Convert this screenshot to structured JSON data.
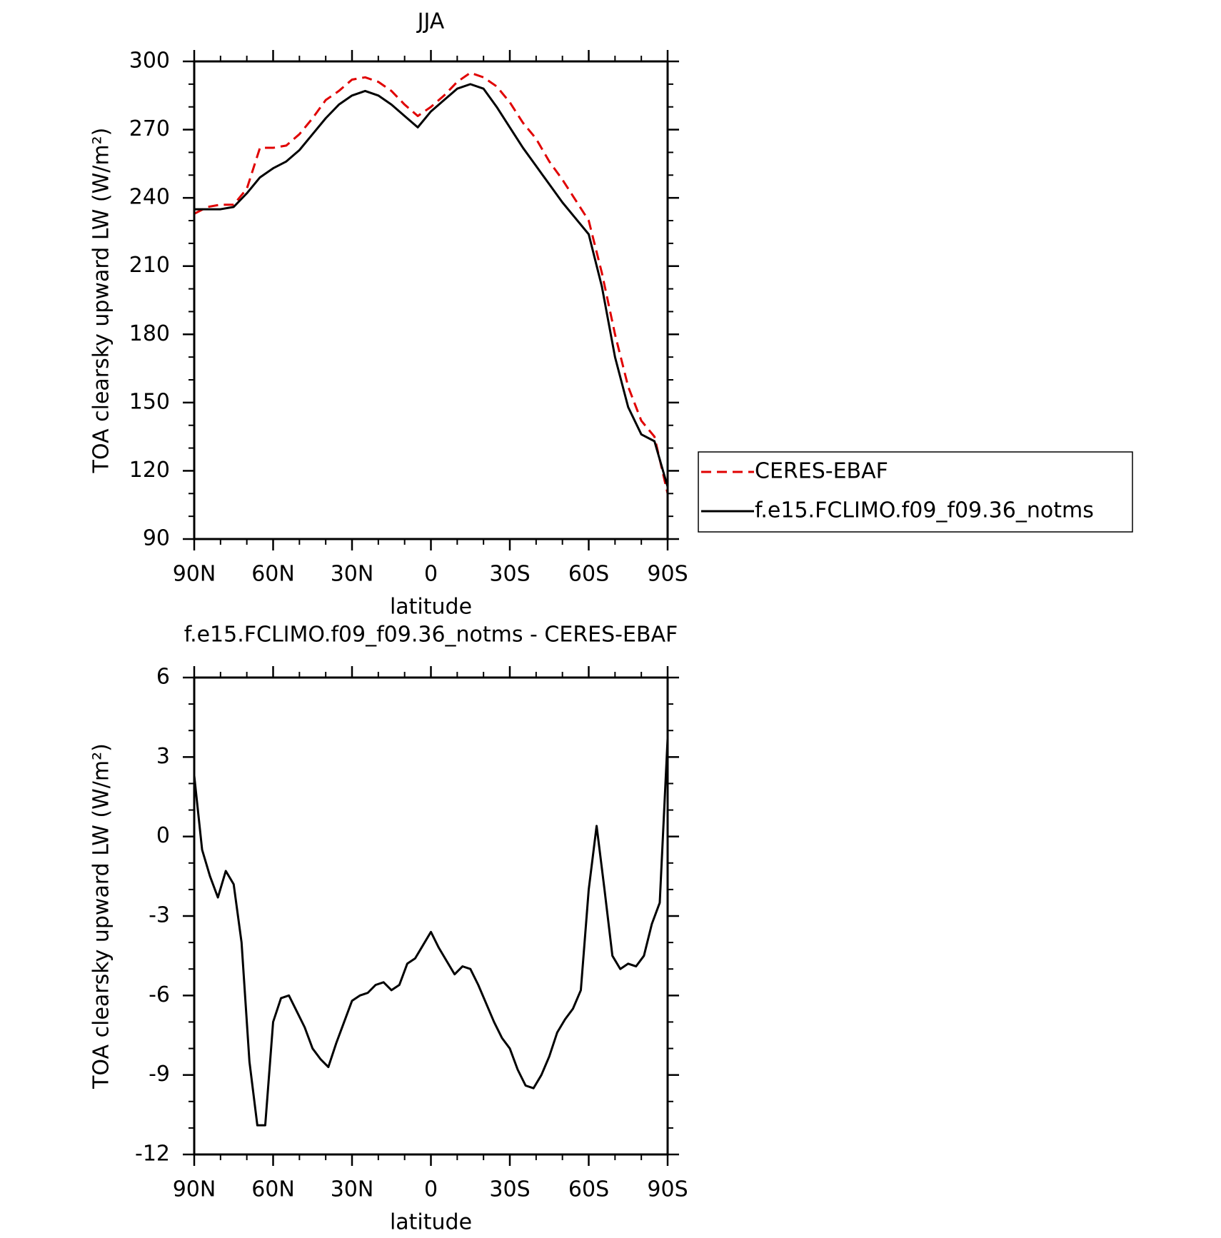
{
  "chart_data": [
    {
      "type": "line",
      "title": "JJA",
      "xlabel": "latitude",
      "ylabel": "TOA clearsky upward LW (W/m²)",
      "x": [
        90,
        85,
        80,
        75,
        70,
        65,
        60,
        55,
        50,
        45,
        40,
        35,
        30,
        25,
        20,
        15,
        10,
        5,
        0,
        -5,
        -10,
        -15,
        -20,
        -25,
        -30,
        -35,
        -40,
        -45,
        -50,
        -55,
        -60,
        -65,
        -70,
        -75,
        -80,
        -85,
        -90
      ],
      "series": [
        {
          "name": "CERES-EBAF",
          "color": "#e00000",
          "linestyle": "dashed",
          "values": [
            233,
            236,
            237,
            237,
            244,
            262,
            262,
            263,
            268,
            275,
            283,
            287,
            292,
            293,
            291,
            287,
            281,
            276,
            280,
            285,
            291,
            295,
            293,
            289,
            282,
            273,
            266,
            256,
            248,
            239,
            230,
            207,
            180,
            157,
            142,
            135,
            110
          ]
        },
        {
          "name": "f.e15.FCLIMO.f09_f09.36_notms",
          "color": "#000000",
          "linestyle": "solid",
          "values": [
            235,
            235,
            235,
            236,
            242,
            249,
            253,
            256,
            261,
            268,
            275,
            281,
            285,
            287,
            285,
            281,
            276,
            271,
            278,
            283,
            288,
            290,
            288,
            280,
            271,
            262,
            254,
            246,
            238,
            231,
            224,
            201,
            170,
            148,
            136,
            133,
            113
          ]
        }
      ],
      "xlim": [
        90,
        -90
      ],
      "xticks": [
        {
          "value": 90,
          "label": "90N"
        },
        {
          "value": 60,
          "label": "60N"
        },
        {
          "value": 30,
          "label": "30N"
        },
        0,
        {
          "value": -30,
          "label": "30S"
        },
        {
          "value": -60,
          "label": "60S"
        },
        {
          "value": -90,
          "label": "90S"
        }
      ],
      "ylim": [
        90,
        300
      ],
      "yticks": [
        90,
        120,
        150,
        180,
        210,
        240,
        270,
        300
      ],
      "legend": "outside-right"
    },
    {
      "type": "line",
      "title": "f.e15.FCLIMO.f09_f09.36_notms - CERES-EBAF",
      "xlabel": "latitude",
      "ylabel": "TOA clearsky upward LW (W/m²)",
      "x": [
        90,
        87,
        84,
        81,
        78,
        75,
        72,
        69,
        66,
        63,
        60,
        57,
        54,
        51,
        48,
        45,
        42,
        39,
        36,
        33,
        30,
        27,
        24,
        21,
        18,
        15,
        12,
        9,
        6,
        3,
        0,
        -3,
        -6,
        -9,
        -12,
        -15,
        -18,
        -21,
        -24,
        -27,
        -30,
        -33,
        -36,
        -39,
        -42,
        -45,
        -48,
        -51,
        -54,
        -57,
        -60,
        -63,
        -66,
        -69,
        -72,
        -75,
        -78,
        -81,
        -84,
        -87,
        -90
      ],
      "series": [
        {
          "color": "#000000",
          "linestyle": "solid",
          "values": [
            2.3,
            -0.5,
            -1.5,
            -2.3,
            -1.3,
            -1.8,
            -4.0,
            -8.5,
            -10.9,
            -10.9,
            -7.0,
            -6.1,
            -6.0,
            -6.6,
            -7.2,
            -8.0,
            -8.4,
            -8.7,
            -7.8,
            -7.0,
            -6.2,
            -6.0,
            -5.9,
            -5.6,
            -5.5,
            -5.8,
            -5.6,
            -4.8,
            -4.6,
            -4.1,
            -3.6,
            -4.2,
            -4.7,
            -5.2,
            -4.9,
            -5.0,
            -5.6,
            -6.3,
            -7.0,
            -7.6,
            -8.0,
            -8.8,
            -9.4,
            -9.5,
            -9.0,
            -8.3,
            -7.4,
            -6.9,
            -6.5,
            -5.8,
            -2.0,
            0.4,
            -2.0,
            -4.5,
            -5.0,
            -4.8,
            -4.9,
            -4.5,
            -3.3,
            -2.5,
            3.7
          ]
        }
      ],
      "xlim": [
        90,
        -90
      ],
      "xticks": [
        {
          "value": 90,
          "label": "90N"
        },
        {
          "value": 60,
          "label": "60N"
        },
        {
          "value": 30,
          "label": "30N"
        },
        0,
        {
          "value": -30,
          "label": "30S"
        },
        {
          "value": -60,
          "label": "60S"
        },
        {
          "value": -90,
          "label": "90S"
        }
      ],
      "ylim": [
        -12,
        6
      ],
      "yticks": [
        -12,
        -9,
        -6,
        -3,
        0,
        3,
        6
      ]
    }
  ]
}
